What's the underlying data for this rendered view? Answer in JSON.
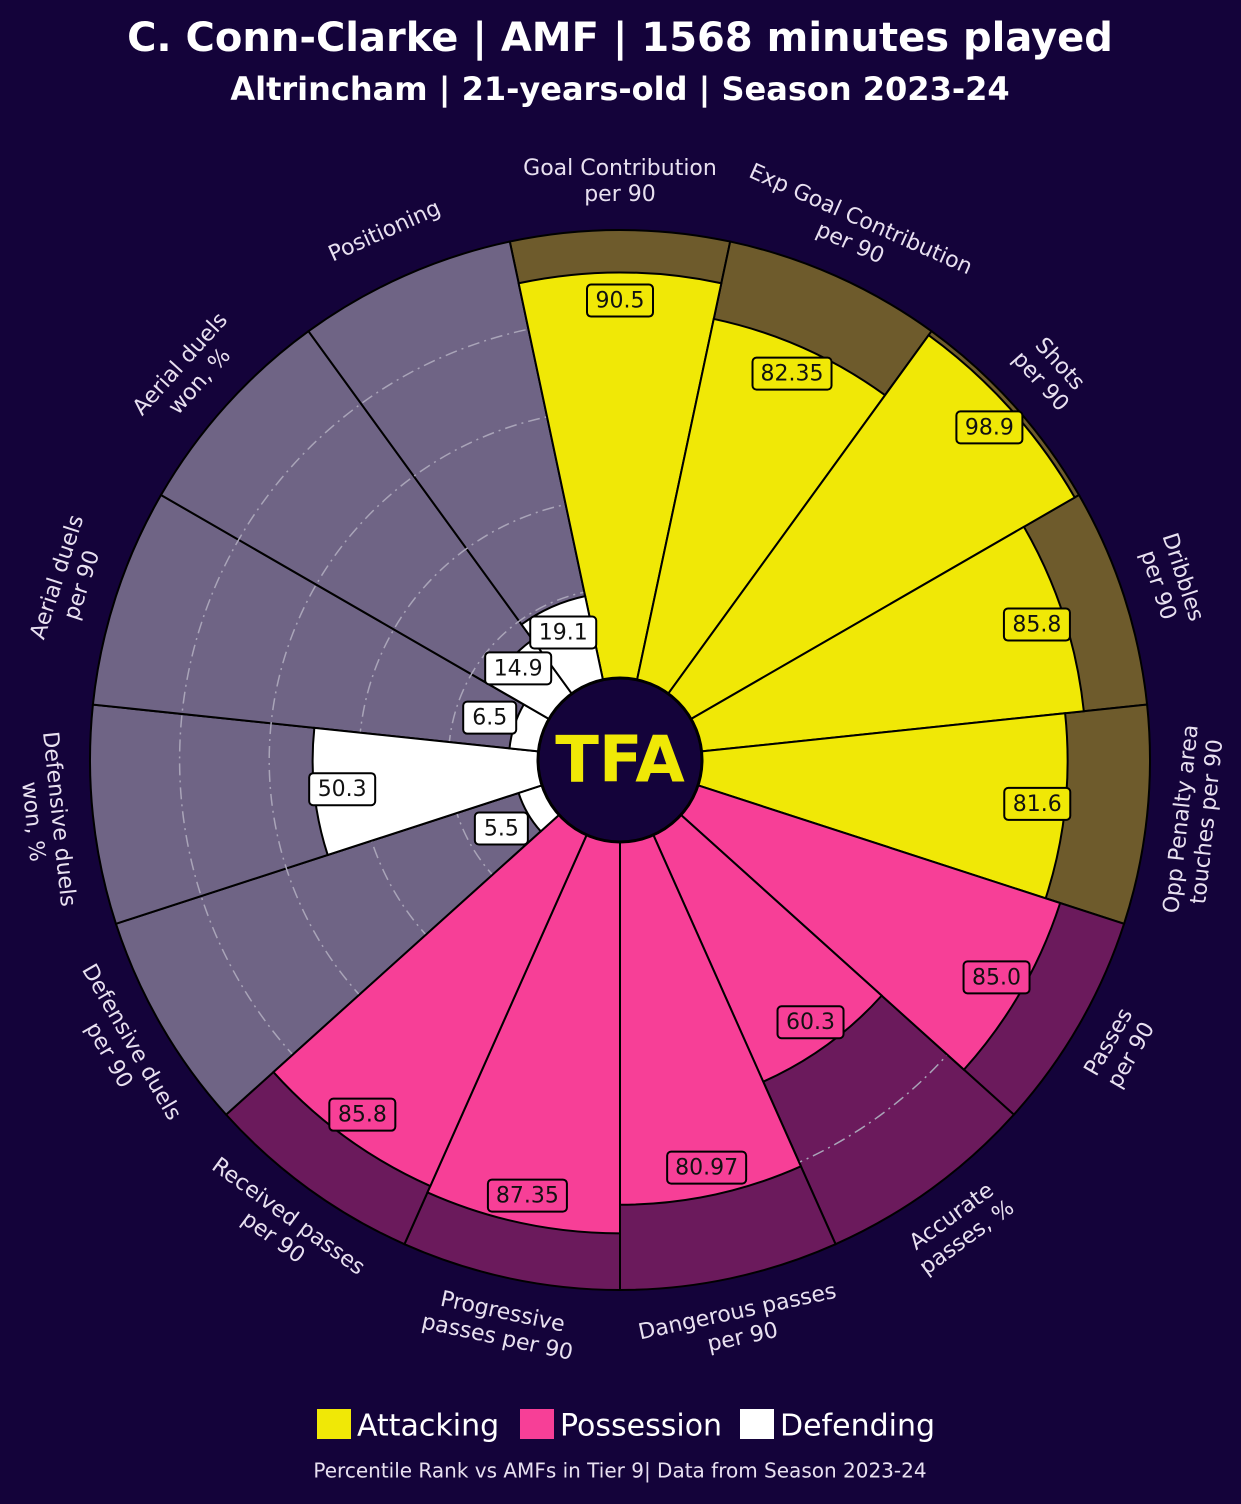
{
  "chart_data": {
    "type": "pizza",
    "title": "C. Conn-Clarke | AMF | 1568 minutes played",
    "subtitle": "Altrincham | 21-years-old | Season 2023-24",
    "footer": "Percentile Rank vs AMFs in Tier 9| Data from Season 2023-24",
    "logo": "TFA",
    "rlim": [
      0,
      100
    ],
    "rticks": [
      20,
      40,
      60,
      80
    ],
    "series": [
      {
        "name": "Attacking",
        "color": "#f0e806",
        "bg_color": "#6e5b2c",
        "categories": [
          "Goal Contribution\nper 90",
          "Exp Goal Contribution\nper 90",
          "Shots\nper 90",
          "Dribbles\nper 90",
          "Opp Penalty area\ntouches per 90"
        ],
        "values": [
          90.5,
          82.35,
          98.9,
          85.8,
          81.6
        ],
        "value_labels": [
          "90.5",
          "82.35",
          "98.9",
          "85.8",
          "81.6"
        ]
      },
      {
        "name": "Possession",
        "color": "#f73f97",
        "bg_color": "#6b1a5c",
        "categories": [
          "Passes\nper 90",
          "Accurate\npasses, %",
          "Dangerous passes\nper 90",
          "Progressive\npasses per 90",
          "Received passes\nper 90"
        ],
        "values": [
          85.0,
          60.3,
          80.97,
          87.35,
          85.8
        ],
        "value_labels": [
          "85.0",
          "60.3",
          "80.97",
          "87.35",
          "85.8"
        ]
      },
      {
        "name": "Defending",
        "color": "#ffffff",
        "bg_color": "#6f6485",
        "categories": [
          "Defensive duels\nper 90",
          "Defensive duels\nwon, %",
          "Aerial duels\nper 90",
          "Aerial duels\nwon, %",
          "Positioning"
        ],
        "values": [
          5.5,
          50.3,
          6.5,
          14.9,
          19.1
        ],
        "value_labels": [
          "5.5",
          "50.3",
          "6.5",
          "14.9",
          "19.1"
        ]
      }
    ]
  }
}
